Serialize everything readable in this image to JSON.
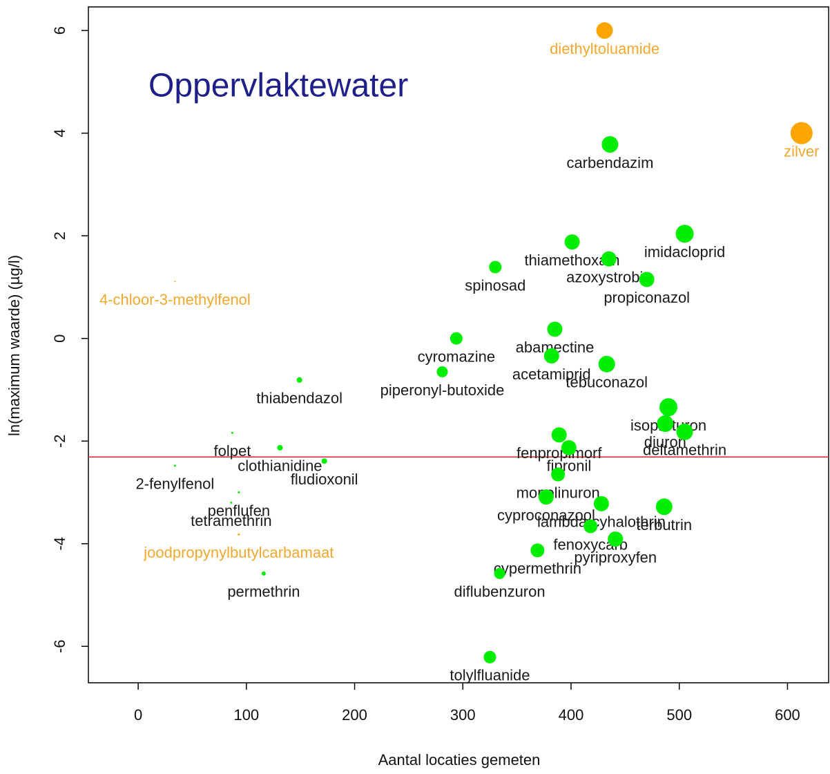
{
  "chart_data": {
    "type": "scatter",
    "title": "Oppervlaktewater",
    "xlabel": "Aantal locaties gemeten",
    "ylabel": "ln(maximum waarde) (µg/l)",
    "xlim": [
      -46,
      638
    ],
    "ylim": [
      -6.71,
      6.46
    ],
    "xticks": [
      0,
      100,
      200,
      300,
      400,
      500,
      600
    ],
    "yticks": [
      -6,
      -4,
      -2,
      0,
      2,
      4,
      6
    ],
    "hline": -2.31,
    "hline_color": "#d62728",
    "labels": [
      "diethyltoluamide",
      "zilver",
      "carbendazim",
      "imidacloprid",
      "thiamethoxam",
      "azoxystrobin",
      "propiconazol",
      "spinosad",
      "4-chloor-3-methylfenol",
      "cyromazine",
      "abamectine",
      "acetamiprid",
      "tebuconazol",
      "piperonyl-butoxide",
      "thiabendazol",
      "isoproturon",
      "diuron",
      "deltamethrin",
      "fenpropimorf",
      "fipronil",
      "monolinuron",
      "cyproconazool",
      "lambda-cyhalothrin",
      "terbutrin",
      "fenoxycarb",
      "pyriproxyfen",
      "cypermethrin",
      "diflubenzuron",
      "tolylfluanide",
      "folpet",
      "clothianidine",
      "fludioxonil",
      "2-fenylfenol",
      "penflufen",
      "tetramethrin",
      "joodpropynylbutylcarbamaat",
      "permethrin"
    ],
    "x": [
      431,
      613,
      436,
      505,
      401,
      435,
      470,
      330,
      34,
      294,
      385,
      382,
      433,
      281,
      149,
      490,
      487,
      505,
      389,
      398,
      388,
      377,
      428,
      486,
      418,
      441,
      369,
      334,
      325,
      87,
      131,
      172,
      34,
      93,
      86,
      93,
      116
    ],
    "y": [
      6.0,
      4.0,
      3.78,
      2.04,
      1.88,
      1.55,
      1.15,
      1.39,
      1.11,
      0.0,
      0.18,
      -0.34,
      -0.5,
      -0.65,
      -0.81,
      -1.34,
      -1.66,
      -1.82,
      -1.88,
      -2.13,
      -2.65,
      -3.09,
      -3.22,
      -3.28,
      -3.66,
      -3.91,
      -4.13,
      -4.58,
      -6.21,
      -1.84,
      -2.13,
      -2.39,
      -2.48,
      -3.0,
      -3.2,
      -3.82,
      -4.58
    ],
    "sizes": [
      12,
      16,
      12,
      13,
      11,
      11,
      11,
      9,
      1,
      9,
      11,
      11,
      12,
      8,
      4,
      13,
      12,
      12,
      11,
      11,
      10,
      11,
      11,
      12,
      10,
      11,
      10,
      8,
      9,
      1.5,
      4,
      4,
      1.5,
      1.5,
      1.5,
      1.5,
      3
    ],
    "colors": [
      "#ffa500",
      "#ffa500",
      "#00ee00",
      "#00ee00",
      "#00ee00",
      "#00ee00",
      "#00ee00",
      "#00ee00",
      "#ffa500",
      "#00ee00",
      "#00ee00",
      "#00ee00",
      "#00ee00",
      "#00ee00",
      "#00ee00",
      "#00ee00",
      "#00ee00",
      "#00ee00",
      "#00ee00",
      "#00ee00",
      "#00ee00",
      "#00ee00",
      "#00ee00",
      "#00ee00",
      "#00ee00",
      "#00ee00",
      "#00ee00",
      "#00ee00",
      "#00ee00",
      "#00ee00",
      "#00ee00",
      "#00ee00",
      "#00ee00",
      "#00ee00",
      "#00ee00",
      "#ffa500",
      "#00ee00"
    ]
  }
}
